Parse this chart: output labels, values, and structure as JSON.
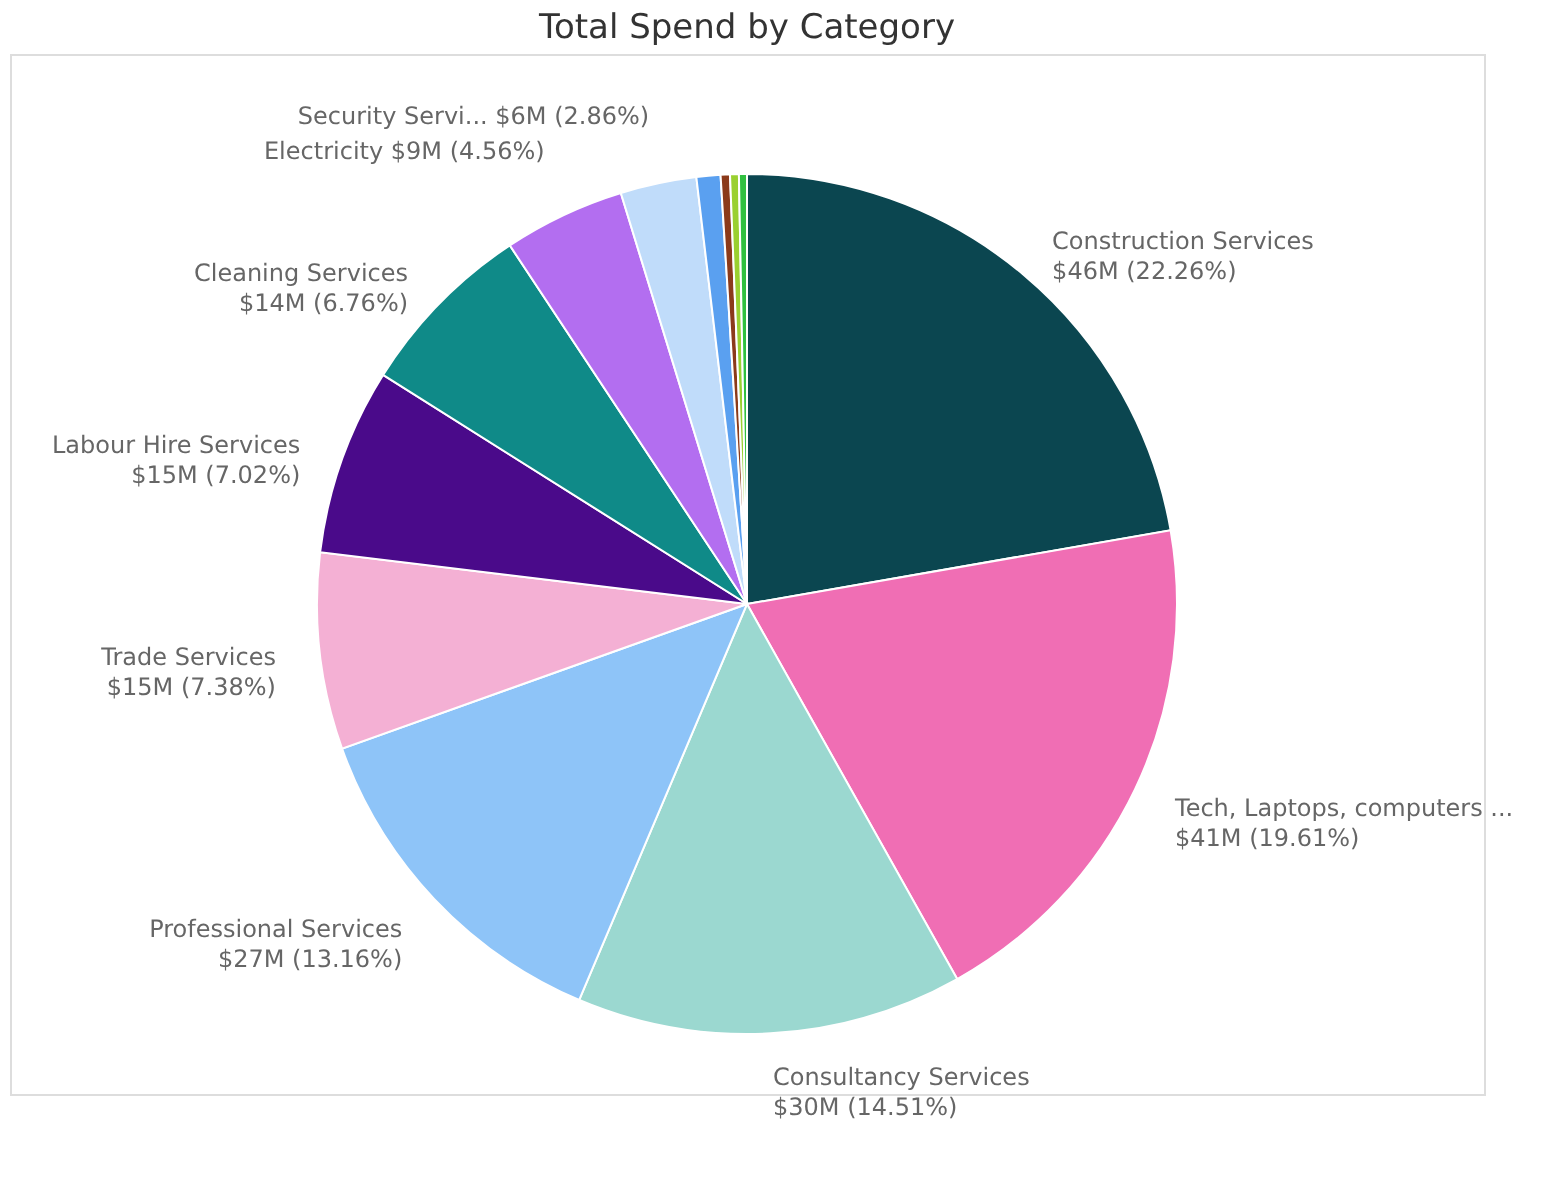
{
  "chart_data": {
    "type": "pie",
    "title": "Total Spend by Category",
    "categories": [
      "Construction Services",
      "Tech, Laptops, computers ...",
      "Consultancy Services",
      "Professional Services",
      "Trade Services",
      "Labour Hire Services",
      "Cleaning Services",
      "Electricity",
      "Security Servi...",
      null,
      null,
      null,
      null
    ],
    "values": [
      22.26,
      19.61,
      14.51,
      13.16,
      7.38,
      7.02,
      6.76,
      4.56,
      2.86,
      0.9,
      0.35,
      0.33,
      0.3
    ],
    "value_labels": [
      "$46M (22.26%)",
      "$41M (19.61%)",
      "$30M (14.51%)",
      "$27M (13.16%)",
      "$15M (7.38%)",
      "$15M (7.02%)",
      "$14M (6.76%)",
      "$9M (4.56%)",
      "$6M (2.86%)",
      null,
      null,
      null,
      null
    ],
    "colors": [
      "#0b4650",
      "#f06eb4",
      "#9bd8d0",
      "#8ec4f8",
      "#f4b0d4",
      "#4a0a8a",
      "#0f8a88",
      "#b36ef0",
      "#c0dcfa",
      "#5aa0f0",
      "#8b3a1a",
      "#9ad030",
      "#30c040"
    ],
    "legend": false
  }
}
